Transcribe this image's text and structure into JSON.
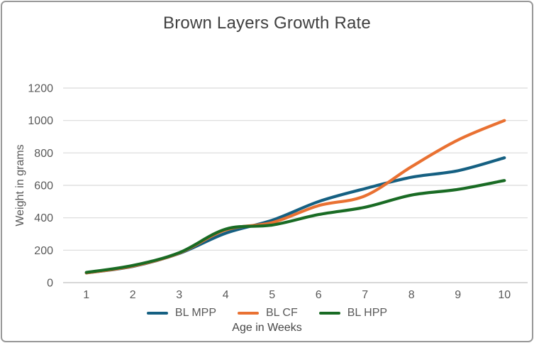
{
  "chart": {
    "frame_border_color": "#999999",
    "background_color": "#FFFFFF"
  },
  "chart_data": {
    "type": "line",
    "title": "Brown Layers Growth Rate",
    "xlabel": "Age in Weeks",
    "ylabel": "Weight in grams",
    "categories": [
      "1",
      "2",
      "3",
      "4",
      "5",
      "6",
      "7",
      "8",
      "9",
      "10"
    ],
    "series": [
      {
        "name": "BL MPP",
        "color": "#156082",
        "values": [
          60,
          100,
          180,
          305,
          385,
          500,
          580,
          650,
          690,
          770
        ]
      },
      {
        "name": "BL CF",
        "color": "#E97132",
        "values": [
          60,
          102,
          182,
          325,
          370,
          475,
          535,
          715,
          880,
          1000
        ]
      },
      {
        "name": "BL HPP",
        "color": "#196B24",
        "values": [
          63,
          106,
          185,
          330,
          355,
          420,
          465,
          540,
          575,
          630
        ]
      }
    ],
    "ylim": [
      0,
      1200
    ],
    "y_ticks": [
      0,
      200,
      400,
      600,
      800,
      1000,
      1200
    ],
    "grid": true,
    "smooth_lines": true,
    "legend_position": "bottom",
    "gridline_color": "#D9D9D9",
    "axis_line_color": "#BFBFBF",
    "tick_label_color": "#595959",
    "title_color": "#404040"
  }
}
